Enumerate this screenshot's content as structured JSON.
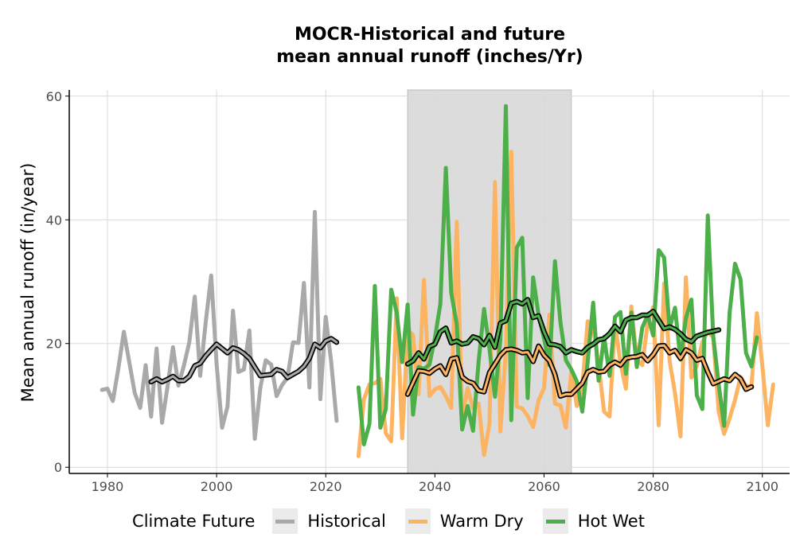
{
  "chart_data": {
    "type": "line",
    "title_line1": "MOCR-Historical and future",
    "title_line2": "mean annual runoff (inches/Yr)",
    "xlabel": "",
    "ylabel": "Mean annual runoff (in/year)",
    "xlim": [
      1973,
      2105
    ],
    "ylim": [
      -1,
      61
    ],
    "x_ticks": [
      1980,
      2000,
      2020,
      2040,
      2060,
      2080,
      2100
    ],
    "y_ticks": [
      0,
      20,
      40,
      60
    ],
    "grid": true,
    "shaded_period": [
      2035,
      2065
    ],
    "legend": {
      "title": "Climate Future",
      "position": "bottom",
      "entries": [
        {
          "label": "Historical",
          "color": "#a9a9a9"
        },
        {
          "label": "Warm Dry",
          "color": "#fdb462"
        },
        {
          "label": "Hot Wet",
          "color": "#4daf4a"
        }
      ]
    },
    "series": [
      {
        "name": "Historical",
        "color": "#a9a9a9",
        "x_start": 1979,
        "values": [
          12.5,
          12.7,
          10.7,
          16.0,
          21.9,
          17.0,
          12.0,
          9.6,
          16.5,
          8.2,
          19.2,
          7.2,
          13.0,
          19.4,
          13.2,
          16.4,
          20.2,
          27.6,
          14.8,
          23.4,
          31.0,
          16.7,
          6.4,
          9.8,
          25.3,
          15.4,
          15.8,
          22.1,
          4.6,
          12.8,
          17.3,
          16.6,
          11.5,
          13.3,
          14.5,
          20.2,
          20.1,
          29.8,
          12.9,
          41.3,
          11.0,
          24.3,
          17.0,
          7.5
        ]
      },
      {
        "name": "Warm Dry",
        "color": "#fdb462",
        "x_start": 2026,
        "values": [
          1.8,
          11.0,
          13.4,
          13.6,
          14.3,
          5.5,
          4.2,
          27.3,
          4.7,
          22.2,
          21.4,
          11.8,
          30.3,
          11.5,
          12.6,
          13.0,
          11.5,
          9.6,
          39.7,
          8.0,
          12.8,
          9.5,
          10.3,
          2.0,
          7.0,
          46.1,
          5.8,
          18.7,
          51.0,
          9.8,
          9.5,
          8.3,
          6.5,
          10.8,
          12.8,
          24.7,
          10.3,
          10.0,
          6.4,
          15.5,
          9.9,
          13.0,
          23.6,
          22.6,
          16.6,
          9.0,
          8.2,
          23.3,
          16.8,
          12.7,
          26.0,
          17.4,
          16.5,
          23.4,
          25.9,
          6.8,
          29.7,
          17.2,
          12.0,
          5.0,
          30.7,
          14.5,
          16.4,
          20.2,
          22.0,
          21.0,
          9.0,
          5.4,
          7.9,
          10.9,
          14.6,
          13.2,
          13.0,
          24.9,
          16.5,
          6.8,
          13.4
        ]
      },
      {
        "name": "Hot Wet",
        "color": "#4daf4a",
        "x_start": 2026,
        "values": [
          12.9,
          3.7,
          7.0,
          29.3,
          6.4,
          9.4,
          28.7,
          25.0,
          17.0,
          26.3,
          8.5,
          16.2,
          15.9,
          16.6,
          20.9,
          26.4,
          48.4,
          28.2,
          23.1,
          6.1,
          9.9,
          5.9,
          17.0,
          25.6,
          19.2,
          11.4,
          20.6,
          58.4,
          7.6,
          35.5,
          37.1,
          11.2,
          30.7,
          24.6,
          20.8,
          16.5,
          33.3,
          23.5,
          17.3,
          15.8,
          13.9,
          9.0,
          17.0,
          26.6,
          14.0,
          21.1,
          14.8,
          24.3,
          25.1,
          15.1,
          25.0,
          16.2,
          22.6,
          24.6,
          21.3,
          35.1,
          33.9,
          22.4,
          25.8,
          17.4,
          24.1,
          27.1,
          11.6,
          9.4,
          40.7,
          21.2,
          13.4,
          6.7,
          25.0,
          32.9,
          30.4,
          18.5,
          16.3,
          21.0
        ]
      },
      {
        "name": "Historical",
        "smoothed": true,
        "color": "#a9a9a9",
        "x_start": 1988,
        "values": [
          13.8,
          14.3,
          13.8,
          14.2,
          14.7,
          14.0,
          14.0,
          14.7,
          16.4,
          16.8,
          18.0,
          19.0,
          19.9,
          19.2,
          18.5,
          19.3,
          19.0,
          18.4,
          17.6,
          16.2,
          14.8,
          14.9,
          15.0,
          15.8,
          15.5,
          14.5,
          15.0,
          15.5,
          16.3,
          17.6,
          19.9,
          19.3,
          20.4,
          20.8,
          20.2
        ]
      },
      {
        "name": "Warm Dry",
        "smoothed": true,
        "color": "#fdb462",
        "x_start": 2035,
        "values": [
          11.8,
          13.7,
          15.6,
          15.5,
          15.2,
          15.9,
          16.4,
          15.0,
          17.5,
          17.7,
          14.6,
          13.9,
          13.6,
          12.4,
          12.2,
          15.3,
          16.7,
          18.1,
          19.0,
          19.1,
          18.9,
          18.5,
          18.6,
          17.1,
          19.6,
          18.1,
          17.2,
          15.0,
          11.5,
          11.8,
          11.8,
          12.7,
          13.6,
          15.4,
          15.8,
          15.4,
          15.5,
          16.5,
          17.0,
          16.5,
          17.6,
          17.8,
          17.9,
          18.2,
          17.2,
          18.2,
          19.6,
          19.7,
          18.5,
          18.9,
          17.6,
          19.0,
          18.5,
          17.3,
          17.6,
          15.4,
          13.5,
          13.9,
          14.3,
          14.0,
          15.0,
          14.3,
          12.6,
          13.0
        ]
      },
      {
        "name": "Hot Wet",
        "smoothed": true,
        "color": "#4daf4a",
        "x_start": 2035,
        "values": [
          16.7,
          17.2,
          18.5,
          17.5,
          19.5,
          19.9,
          21.9,
          22.5,
          20.1,
          20.4,
          19.9,
          20.1,
          21.1,
          20.8,
          19.8,
          21.3,
          19.4,
          23.3,
          23.7,
          26.5,
          26.8,
          26.4,
          27.1,
          24.2,
          24.5,
          21.9,
          19.9,
          19.8,
          19.5,
          18.5,
          19.0,
          18.7,
          18.5,
          19.4,
          19.9,
          20.6,
          20.8,
          21.6,
          22.8,
          21.9,
          23.8,
          24.2,
          24.2,
          24.6,
          24.6,
          25.2,
          23.8,
          22.4,
          22.7,
          22.3,
          21.6,
          20.7,
          20.3,
          21.2,
          21.5,
          21.8,
          22.0,
          22.2
        ]
      }
    ]
  }
}
